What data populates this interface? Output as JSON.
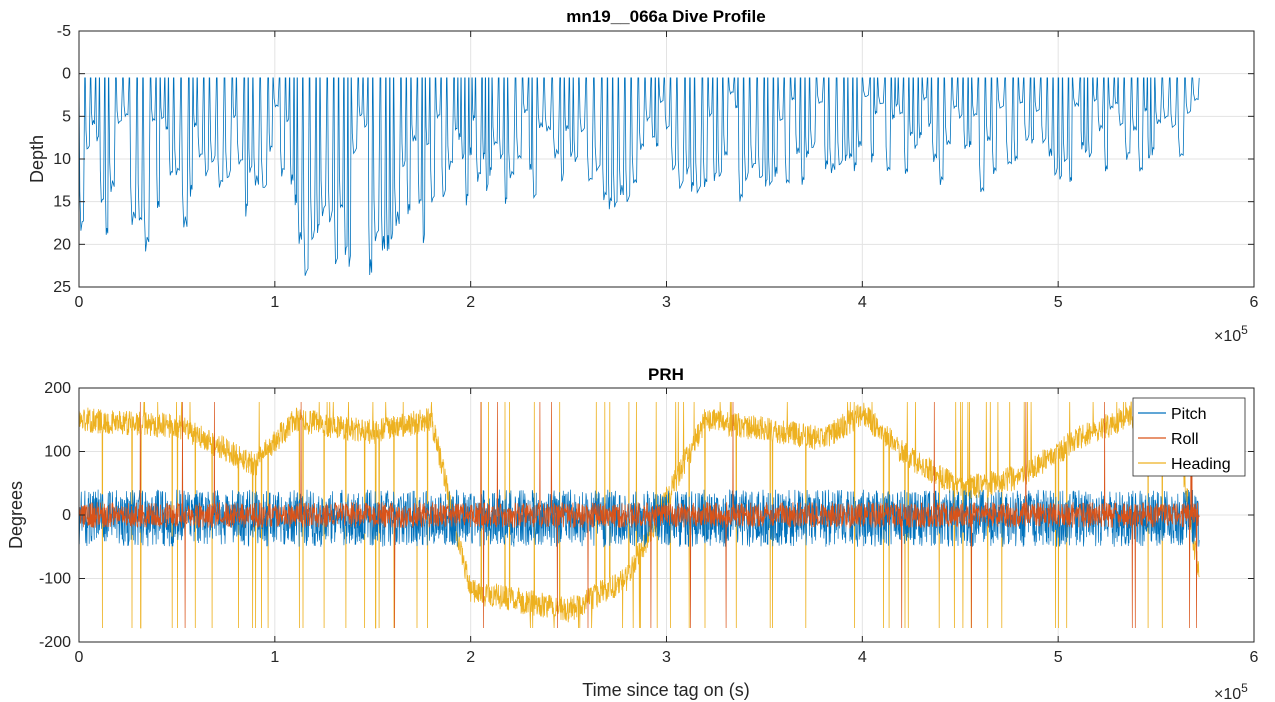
{
  "chart_data": [
    {
      "type": "line",
      "title": "mn19__066a Dive Profile",
      "xlabel": "",
      "ylabel": "Depth",
      "xlim": [
        0,
        600000
      ],
      "ylim": [
        -5,
        25
      ],
      "y_reversed": true,
      "grid": true,
      "x_tick_labels": [
        "0",
        "1",
        "2",
        "3",
        "4",
        "5",
        "6"
      ],
      "y_tick_labels": [
        "-5",
        "0",
        "5",
        "10",
        "15",
        "20",
        "25"
      ],
      "x_exponent_label": "×10",
      "x_exponent_power": "5",
      "series": [
        {
          "color": "#0072BD",
          "x_end": 572000,
          "dive_max_depth_envelope": [
            [
              0,
              22
            ],
            [
              10000,
              22
            ],
            [
              20000,
              18
            ],
            [
              30000,
              24
            ],
            [
              40000,
              16
            ],
            [
              50000,
              23
            ],
            [
              60000,
              17
            ],
            [
              80000,
              17
            ],
            [
              100000,
              16
            ],
            [
              115000,
              24
            ],
            [
              135000,
              25
            ],
            [
              160000,
              23
            ],
            [
              180000,
              19
            ],
            [
              200000,
              17
            ],
            [
              230000,
              16
            ],
            [
              260000,
              18
            ],
            [
              300000,
              15
            ],
            [
              350000,
              15
            ],
            [
              400000,
              12
            ],
            [
              450000,
              14
            ],
            [
              500000,
              14
            ],
            [
              530000,
              11
            ],
            [
              560000,
              14
            ]
          ]
        }
      ]
    },
    {
      "type": "line",
      "title": "PRH",
      "xlabel": "Time since tag on (s)",
      "ylabel": "Degrees",
      "xlim": [
        0,
        600000
      ],
      "ylim": [
        -200,
        200
      ],
      "grid": true,
      "legend": "top-right",
      "x_tick_labels": [
        "0",
        "1",
        "2",
        "3",
        "4",
        "5",
        "6"
      ],
      "y_tick_labels": [
        "-200",
        "-100",
        "0",
        "100",
        "200"
      ],
      "x_exponent_label": "×10",
      "x_exponent_power": "5",
      "series": [
        {
          "name": "Pitch",
          "color": "#0072BD",
          "x_end": 572000,
          "typical_range": [
            -50,
            40
          ]
        },
        {
          "name": "Roll",
          "color": "#D95319",
          "x_end": 572000,
          "typical_range": [
            -20,
            20
          ]
        },
        {
          "name": "Heading",
          "color": "#EDB120",
          "x_end": 572000,
          "baseline_profile": [
            [
              0,
              150
            ],
            [
              50000,
              140
            ],
            [
              90000,
              80
            ],
            [
              110000,
              150
            ],
            [
              150000,
              130
            ],
            [
              180000,
              150
            ],
            [
              200000,
              -120
            ],
            [
              250000,
              -150
            ],
            [
              280000,
              -100
            ],
            [
              320000,
              150
            ],
            [
              380000,
              120
            ],
            [
              400000,
              160
            ],
            [
              420000,
              100
            ],
            [
              450000,
              40
            ],
            [
              480000,
              60
            ],
            [
              510000,
              120
            ],
            [
              540000,
              160
            ],
            [
              560000,
              150
            ],
            [
              572000,
              -100
            ]
          ]
        }
      ]
    }
  ]
}
